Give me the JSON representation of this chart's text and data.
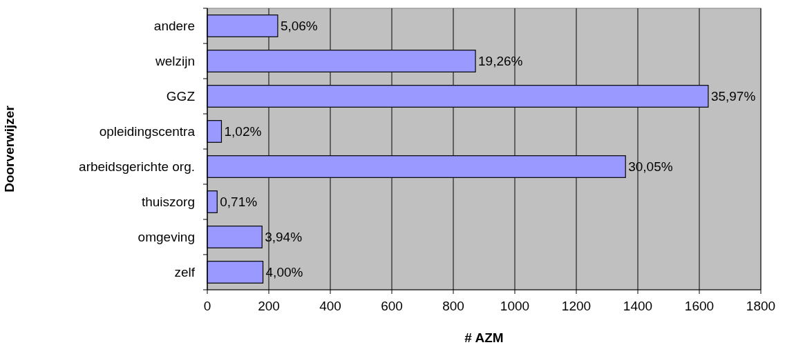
{
  "chart_data": {
    "type": "bar",
    "orientation": "horizontal",
    "xlabel": "# AZM",
    "ylabel": "Doorverwijzer",
    "categories": [
      "andere",
      "welzijn",
      "GGZ",
      "opleidingscentra",
      "arbeidsgerichte org.",
      "thuiszorg",
      "omgeving",
      "zelf"
    ],
    "values": [
      229,
      872,
      1629,
      46,
      1360,
      32,
      178,
      181
    ],
    "annotations": [
      {
        "text": "5,06%",
        "x": 229,
        "y": "andere"
      },
      {
        "text": "19,26%",
        "x": 872,
        "y": "welzijn"
      },
      {
        "text": "35,97%",
        "x": 1629,
        "y": "GGZ"
      },
      {
        "text": "1,02%",
        "x": 46,
        "y": "opleidingscentra"
      },
      {
        "text": "30,05%",
        "x": 1360,
        "y": "arbeidsgerichte org."
      },
      {
        "text": "0,71%",
        "x": 32,
        "y": "thuiszorg"
      },
      {
        "text": "3,94%",
        "x": 178,
        "y": "omgeving"
      },
      {
        "text": "4,00%",
        "x": 181,
        "y": "zelf"
      }
    ],
    "color": "#9999ff",
    "xlim": [
      0,
      1800
    ],
    "xticks": [
      0,
      200,
      400,
      600,
      800,
      1000,
      1200,
      1400,
      1600,
      1800
    ],
    "grid": "x"
  }
}
